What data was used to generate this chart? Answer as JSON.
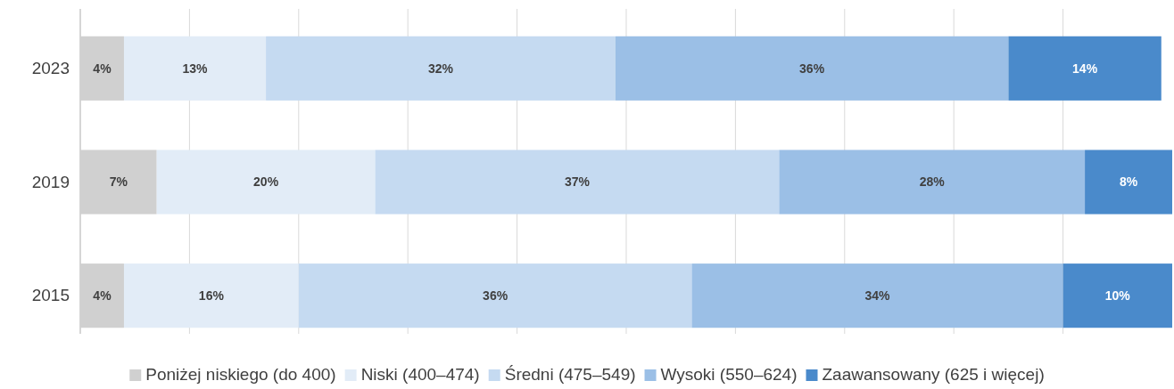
{
  "chart_data": {
    "type": "bar",
    "orientation": "horizontal",
    "stacked": true,
    "categories": [
      "2023",
      "2019",
      "2015"
    ],
    "xlim": [
      0,
      100
    ],
    "xticks": [
      {
        "value": 0,
        "label": null
      },
      {
        "value": 10,
        "label": null
      },
      {
        "value": 20,
        "label": null
      },
      {
        "value": 30,
        "label": null
      },
      {
        "value": 40,
        "label": null
      },
      {
        "value": 50,
        "label": null
      },
      {
        "value": 60,
        "label": null
      },
      {
        "value": 70,
        "label": null
      },
      {
        "value": 80,
        "label": null
      },
      {
        "value": 90,
        "label": null
      }
    ],
    "grid": "x",
    "tick_labels": "y",
    "legend": "bottom",
    "series": [
      {
        "name": "Poniżej niskiego (do 400)",
        "color": "#d0d0d0",
        "values": [
          4,
          7,
          4
        ],
        "value_labels": [
          "4%",
          "7%",
          "4%"
        ]
      },
      {
        "name": "Niski (400–474)",
        "color": "#e2ecf7",
        "values": [
          13,
          20,
          16
        ],
        "value_labels": [
          "13%",
          "20%",
          "16%"
        ]
      },
      {
        "name": "Średni (475–549)",
        "color": "#c5daf1",
        "values": [
          32,
          37,
          36
        ],
        "value_labels": [
          "32%",
          "37%",
          "36%"
        ]
      },
      {
        "name": "Wysoki (550–624)",
        "color": "#9bbfe6",
        "values": [
          36,
          28,
          34
        ],
        "value_labels": [
          "36%",
          "28%",
          "34%"
        ]
      },
      {
        "name": "Zaawansowany (625 i więcej)",
        "color": "#4a8acb",
        "values": [
          14,
          8,
          10
        ],
        "value_labels": [
          "14%",
          "8%",
          "10%"
        ]
      }
    ]
  }
}
